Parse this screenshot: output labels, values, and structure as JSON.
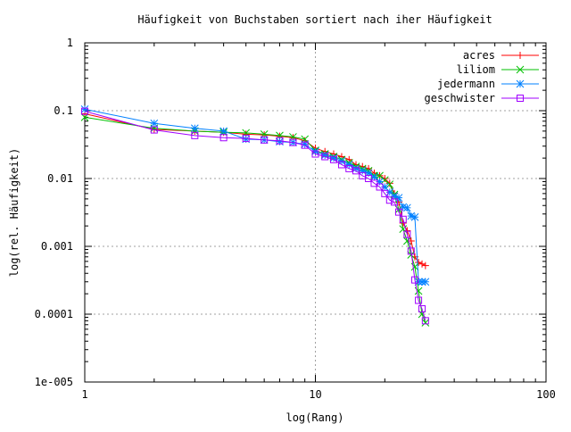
{
  "chart_data": {
    "type": "line",
    "title": "Häufigkeit von Buchstaben sortiert nach iher Häufigkeit",
    "xlabel": "log(Rang)",
    "ylabel": "log(rel. Häufigkeit)",
    "xscale": "log",
    "yscale": "log",
    "xlim": [
      1,
      100
    ],
    "ylim": [
      1e-05,
      1
    ],
    "grid": true,
    "legend_position": "top-right",
    "xticks": [
      {
        "value": 1,
        "label": "1"
      },
      {
        "value": 10,
        "label": "10"
      },
      {
        "value": 100,
        "label": "100"
      }
    ],
    "yticks": [
      {
        "value": 1,
        "label": "1"
      },
      {
        "value": 0.1,
        "label": "0.1"
      },
      {
        "value": 0.01,
        "label": "0.01"
      },
      {
        "value": 0.001,
        "label": "0.001"
      },
      {
        "value": 0.0001,
        "label": "0.0001"
      },
      {
        "value": 1e-05,
        "label": "1e-005"
      }
    ],
    "series": [
      {
        "name": "acres",
        "color": "#ff0000",
        "marker": "plus",
        "x": [
          1,
          2,
          3,
          4,
          5,
          6,
          7,
          8,
          9,
          10,
          11,
          12,
          13,
          14,
          15,
          16,
          17,
          18,
          19,
          20,
          21,
          22,
          23,
          24,
          25,
          26,
          27,
          28,
          29,
          30
        ],
        "y": [
          0.09,
          0.053,
          0.05,
          0.048,
          0.045,
          0.044,
          0.042,
          0.04,
          0.036,
          0.028,
          0.025,
          0.023,
          0.021,
          0.019,
          0.016,
          0.015,
          0.014,
          0.012,
          0.011,
          0.01,
          0.0085,
          0.006,
          0.0045,
          0.0022,
          0.0017,
          0.0012,
          0.0007,
          0.00058,
          0.00055,
          0.00052
        ]
      },
      {
        "name": "liliom",
        "color": "#00c000",
        "marker": "cross",
        "x": [
          1,
          2,
          3,
          4,
          5,
          6,
          7,
          8,
          9,
          10,
          11,
          12,
          13,
          14,
          15,
          16,
          17,
          18,
          19,
          20,
          21,
          22,
          23,
          24,
          25,
          26,
          27,
          28,
          29,
          30
        ],
        "y": [
          0.08,
          0.055,
          0.05,
          0.048,
          0.047,
          0.045,
          0.043,
          0.041,
          0.038,
          0.026,
          0.023,
          0.021,
          0.019,
          0.017,
          0.015,
          0.014,
          0.013,
          0.011,
          0.011,
          0.0095,
          0.0082,
          0.0058,
          0.0035,
          0.0018,
          0.0012,
          0.00075,
          0.0005,
          0.00022,
          0.0001,
          7.5e-05
        ]
      },
      {
        "name": "jedermann",
        "color": "#0080ff",
        "marker": "star",
        "x": [
          1,
          2,
          3,
          4,
          5,
          6,
          7,
          8,
          9,
          10,
          11,
          12,
          13,
          14,
          15,
          16,
          17,
          18,
          19,
          20,
          21,
          22,
          23,
          24,
          25,
          26,
          27,
          28,
          29,
          30
        ],
        "y": [
          0.105,
          0.065,
          0.055,
          0.05,
          0.038,
          0.037,
          0.035,
          0.034,
          0.032,
          0.025,
          0.022,
          0.02,
          0.018,
          0.016,
          0.014,
          0.013,
          0.012,
          0.0105,
          0.009,
          0.0075,
          0.0063,
          0.0055,
          0.0052,
          0.0038,
          0.0037,
          0.0028,
          0.0027,
          0.0003,
          0.0003,
          0.0003
        ]
      },
      {
        "name": "geschwister",
        "color": "#a000ff",
        "marker": "square",
        "x": [
          1,
          2,
          3,
          4,
          5,
          6,
          7,
          8,
          9,
          10,
          11,
          12,
          13,
          14,
          15,
          16,
          17,
          18,
          19,
          20,
          21,
          22,
          23,
          24,
          25,
          26,
          27,
          28,
          29,
          30
        ],
        "y": [
          0.098,
          0.052,
          0.043,
          0.04,
          0.039,
          0.037,
          0.036,
          0.034,
          0.031,
          0.023,
          0.021,
          0.019,
          0.016,
          0.014,
          0.013,
          0.011,
          0.01,
          0.0085,
          0.0075,
          0.006,
          0.0048,
          0.0045,
          0.0032,
          0.0025,
          0.0015,
          0.00085,
          0.00032,
          0.00016,
          0.00012,
          8e-05
        ]
      }
    ]
  }
}
